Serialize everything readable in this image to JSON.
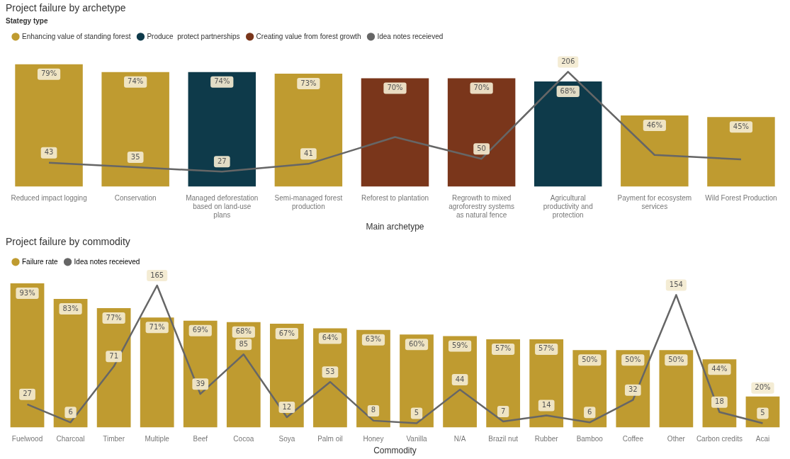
{
  "chart_data": [
    {
      "type": "bar",
      "title": "Project failure by archetype",
      "xlabel": "Main archetype",
      "legend_title": "Stategy type",
      "legend": "top left",
      "categories": [
        "Reduced impact logging",
        "Conservation",
        "Managed deforestation based on land-use plans",
        "Semi-managed forest production",
        "Reforest to plantation",
        "Regrowth to mixed agroforestry systems as natural fence",
        "Agricultural productivity and protection",
        "Payment for ecosystem services",
        "Wild Forest Production"
      ],
      "series": [
        {
          "name": "Enhancing value of standing forest",
          "color": "#bf9b30",
          "values": [
            79,
            74,
            null,
            73,
            null,
            null,
            null,
            46,
            45
          ],
          "value_labels": [
            "79%",
            "74%",
            null,
            "73%",
            null,
            null,
            null,
            "46%",
            "45%"
          ]
        },
        {
          "name": "Produce  protect partnerships",
          "color": "#0e3a4a",
          "values": [
            null,
            null,
            74,
            null,
            null,
            null,
            68,
            null,
            null
          ],
          "value_labels": [
            null,
            null,
            "74%",
            null,
            null,
            null,
            "68%",
            null,
            null
          ]
        },
        {
          "name": "Creating value from forest growth",
          "color": "#7a361b",
          "values": [
            null,
            null,
            null,
            null,
            70,
            70,
            null,
            null,
            null
          ],
          "value_labels": [
            null,
            null,
            null,
            null,
            "70%",
            "70%",
            null,
            null,
            null
          ]
        },
        {
          "name": "Idea notes receieved",
          "type": "line",
          "axis": "y2",
          "color": "#666666",
          "values": [
            43,
            35,
            27,
            41,
            89,
            50,
            206,
            57,
            49
          ],
          "value_labels": [
            "43",
            "35",
            "27",
            "41",
            null,
            "50",
            "206",
            null,
            null
          ]
        }
      ]
    },
    {
      "type": "bar",
      "title": "Project failure by commodity",
      "xlabel": "Commodity",
      "legend": "top left",
      "categories": [
        "Fuelwood",
        "Charcoal",
        "Timber",
        "Multiple",
        "Beef",
        "Cocoa",
        "Soya",
        "Palm oil",
        "Honey",
        "Vanilla",
        "N/A",
        "Brazil nut",
        "Rubber",
        "Bamboo",
        "Coffee",
        "Other",
        "Carbon credits",
        "Acai"
      ],
      "series": [
        {
          "name": "Failure rate",
          "color": "#bf9b30",
          "values": [
            93,
            83,
            77,
            71,
            69,
            68,
            67,
            64,
            63,
            60,
            59,
            57,
            57,
            50,
            50,
            50,
            44,
            20
          ],
          "value_labels": [
            "93%",
            "83%",
            "77%",
            "71%",
            "69%",
            "68%",
            "67%",
            "64%",
            "63%",
            "60%",
            "59%",
            "57%",
            "57%",
            "50%",
            "50%",
            "50%",
            "44%",
            "20%"
          ]
        },
        {
          "name": "Idea notes receieved",
          "type": "line",
          "axis": "y2",
          "color": "#666666",
          "values": [
            27,
            6,
            71,
            165,
            39,
            85,
            12,
            53,
            8,
            5,
            44,
            7,
            14,
            6,
            32,
            154,
            18,
            5
          ],
          "value_labels": [
            "27",
            "6",
            "71",
            "165",
            "39",
            "85",
            "12",
            "53",
            "8",
            "5",
            "44",
            "7",
            "14",
            "6",
            "32",
            "154",
            "18",
            "5"
          ]
        }
      ]
    }
  ]
}
